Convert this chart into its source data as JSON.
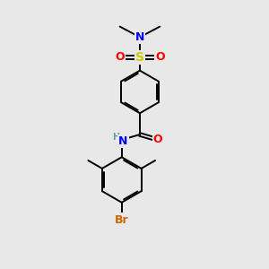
{
  "background_color": "#e8e8e8",
  "figsize": [
    3.0,
    3.0
  ],
  "dpi": 100,
  "colors": {
    "C": "#000000",
    "N": "#0000ff",
    "O": "#ff0000",
    "S": "#cccc00",
    "Br": "#cc6600",
    "H": "#5f9ea0",
    "bond": "#000000"
  },
  "bond_lw": 1.4,
  "double_sep": 0.006
}
